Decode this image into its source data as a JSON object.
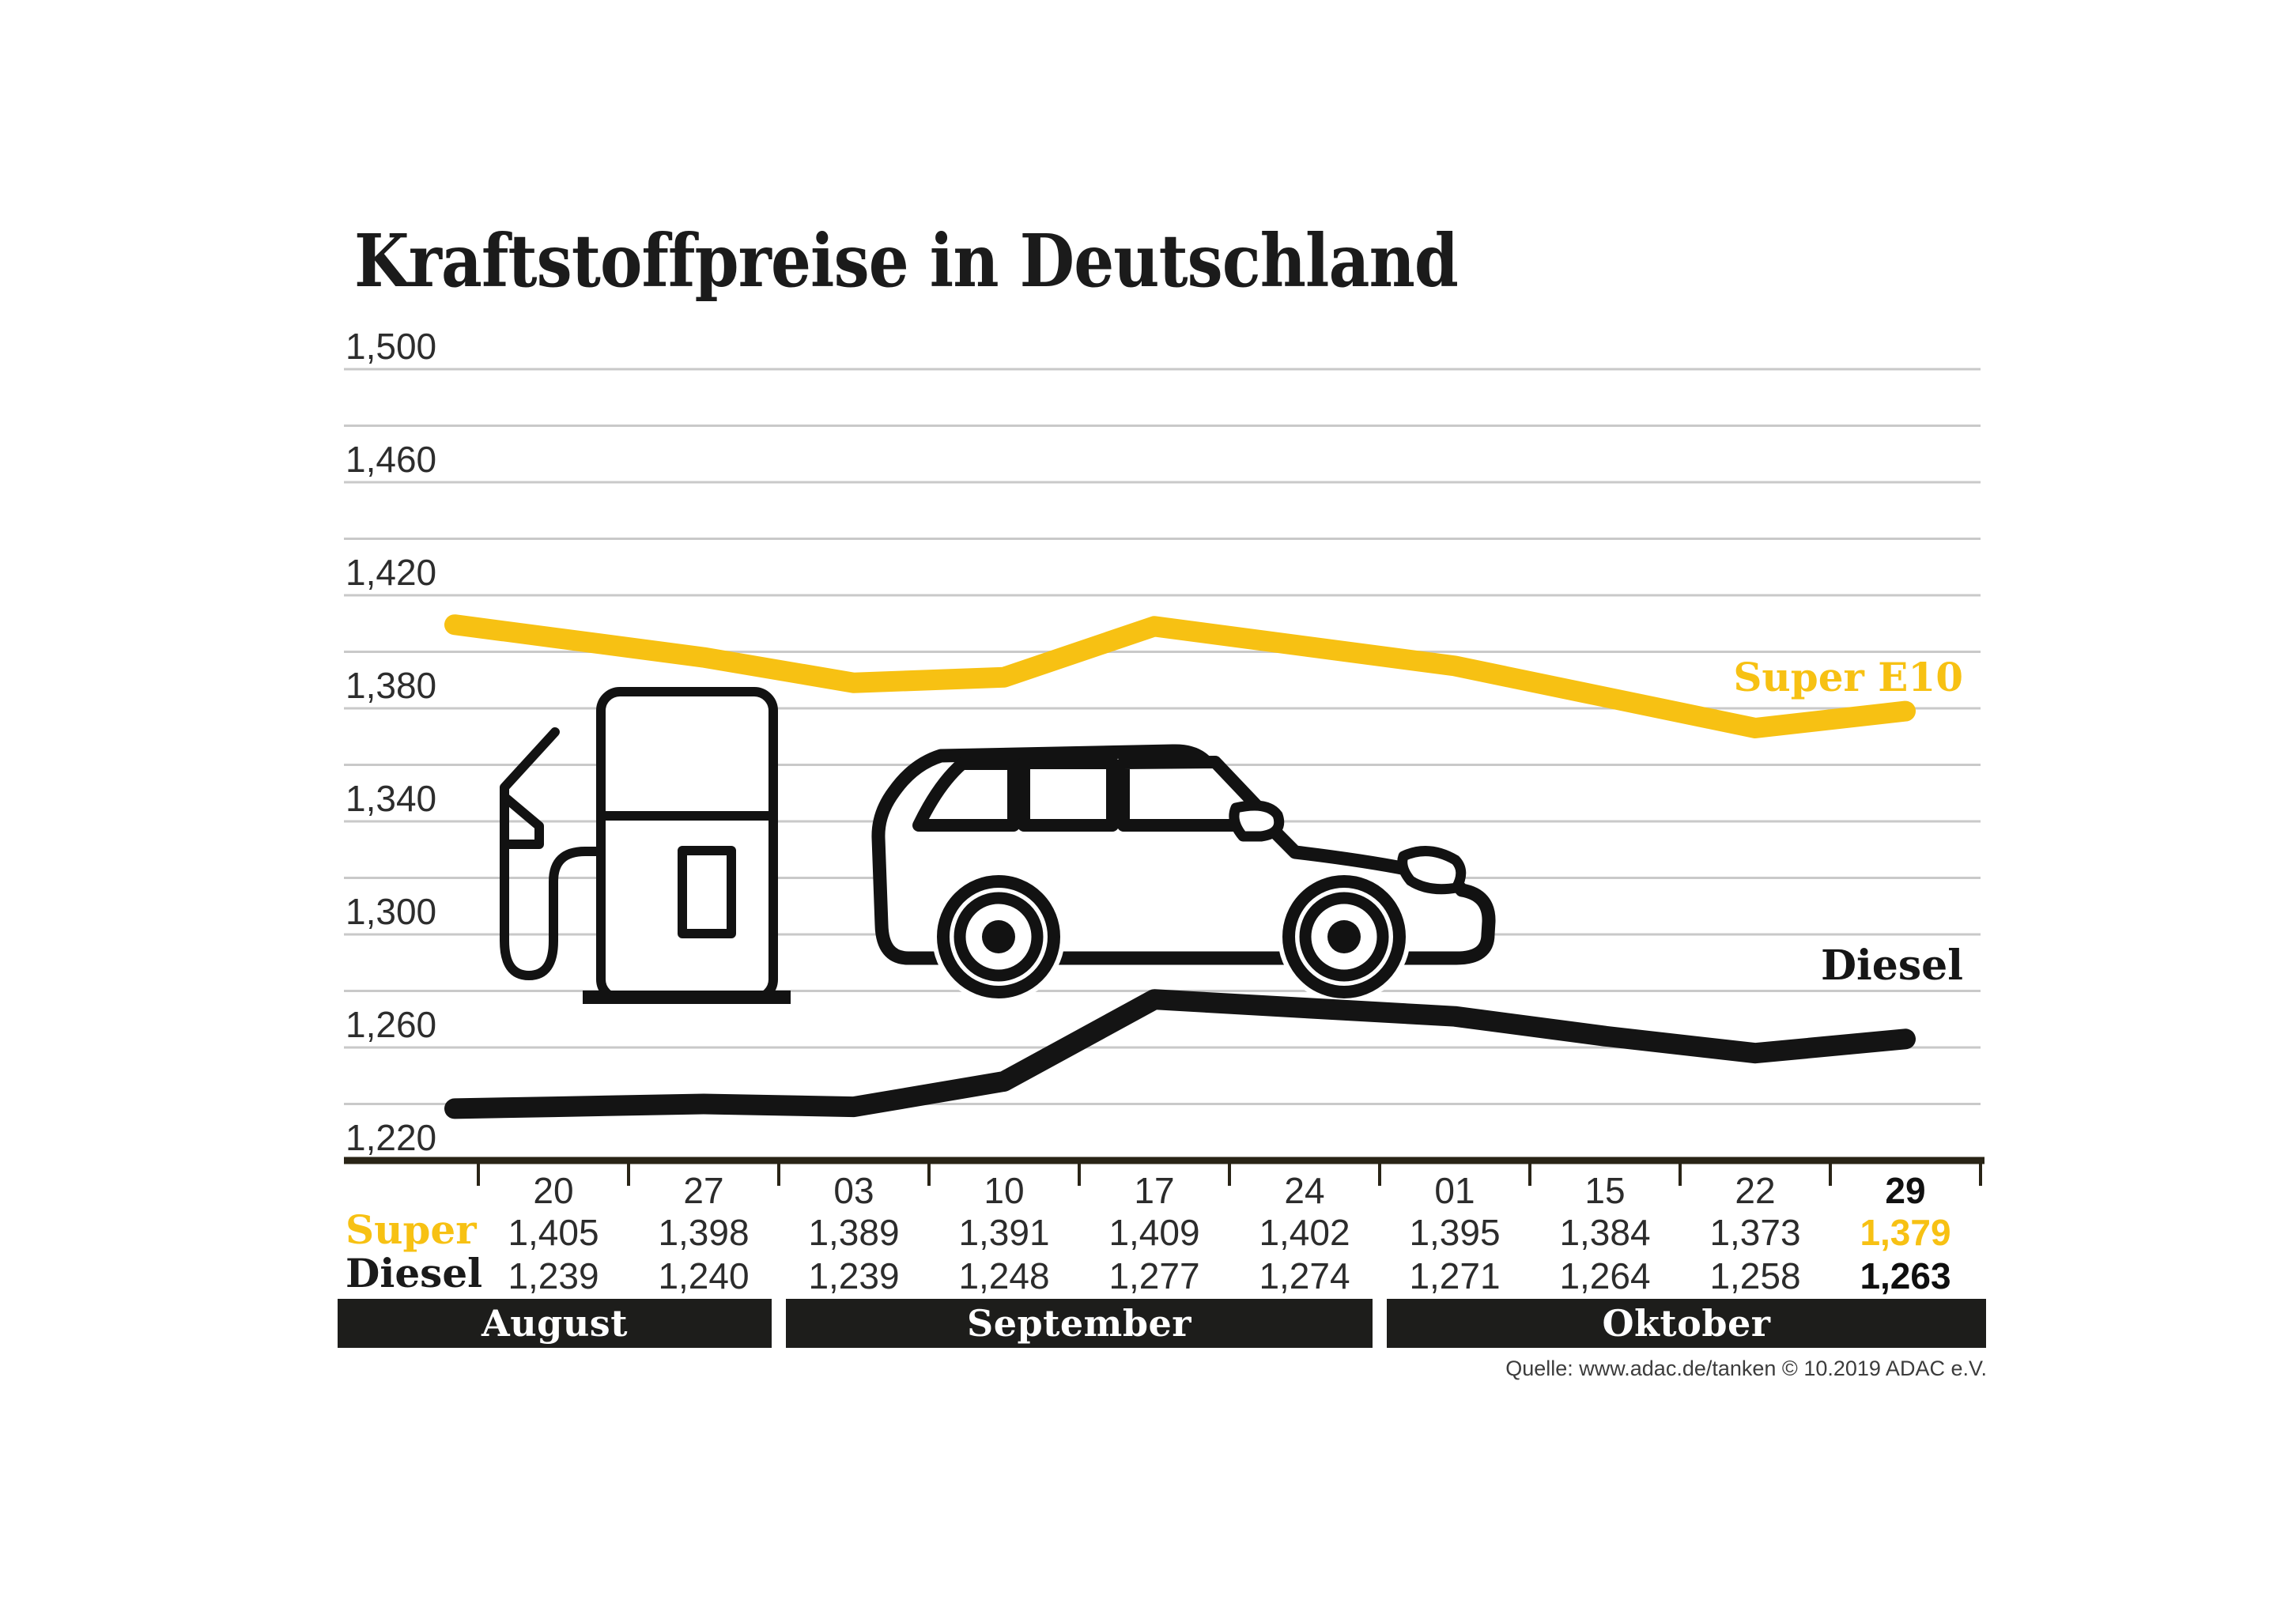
{
  "title": "Kraftstoffpreise in Deutschland",
  "source_note": "Quelle: www.adac.de/tanken   © 10.2019  ADAC e.V.",
  "legend": {
    "super": "Super E10",
    "diesel": "Diesel"
  },
  "row_labels": {
    "super": "Super",
    "diesel": "Diesel"
  },
  "months": [
    "August",
    "September",
    "Oktober"
  ],
  "month_col_spans": [
    [
      0,
      1
    ],
    [
      2,
      5
    ],
    [
      6,
      9
    ]
  ],
  "icons": {
    "pump": "fuel-pump-icon",
    "car": "car-icon"
  },
  "colors": {
    "super_yellow": "#F7C113",
    "diesel_black": "#141414",
    "grid_gray": "#C9C9C9",
    "axis_dark": "#292416",
    "band_black": "#1D1D1B",
    "text_dark": "#2C2C2C"
  },
  "chart_data": {
    "type": "line",
    "title": "Kraftstoffpreise in Deutschland",
    "x": [
      "20",
      "27",
      "03",
      "10",
      "17",
      "24",
      "01",
      "15",
      "22",
      "29"
    ],
    "x_months": [
      "August",
      "August",
      "September",
      "September",
      "September",
      "September",
      "Oktober",
      "Oktober",
      "Oktober",
      "Oktober"
    ],
    "series": [
      {
        "name": "Super E10",
        "color_key": "super_yellow",
        "values": [
          1405,
          1398,
          1389,
          1391,
          1409,
          1402,
          1395,
          1384,
          1373,
          1379
        ],
        "labels": [
          "1,405",
          "1,398",
          "1,389",
          "1,391",
          "1,409",
          "1,402",
          "1,395",
          "1,384",
          "1,373",
          "1,379"
        ]
      },
      {
        "name": "Diesel",
        "color_key": "diesel_black",
        "values": [
          1239,
          1240,
          1239,
          1248,
          1277,
          1274,
          1271,
          1264,
          1258,
          1263
        ],
        "labels": [
          "1,239",
          "1,240",
          "1,239",
          "1,248",
          "1,277",
          "1,274",
          "1,271",
          "1,264",
          "1,258",
          "1,263"
        ]
      }
    ],
    "ylim": [
      1220,
      1500
    ],
    "ytick_step": 20,
    "ylabels": [
      {
        "v": 1220,
        "t": "1,220"
      },
      {
        "v": 1260,
        "t": "1,260"
      },
      {
        "v": 1300,
        "t": "1,300"
      },
      {
        "v": 1340,
        "t": "1,340"
      },
      {
        "v": 1380,
        "t": "1,380"
      },
      {
        "v": 1420,
        "t": "1,420"
      },
      {
        "v": 1460,
        "t": "1,460"
      },
      {
        "v": 1500,
        "t": "1,500"
      }
    ],
    "grid": true,
    "legend_position": "inline-right"
  }
}
